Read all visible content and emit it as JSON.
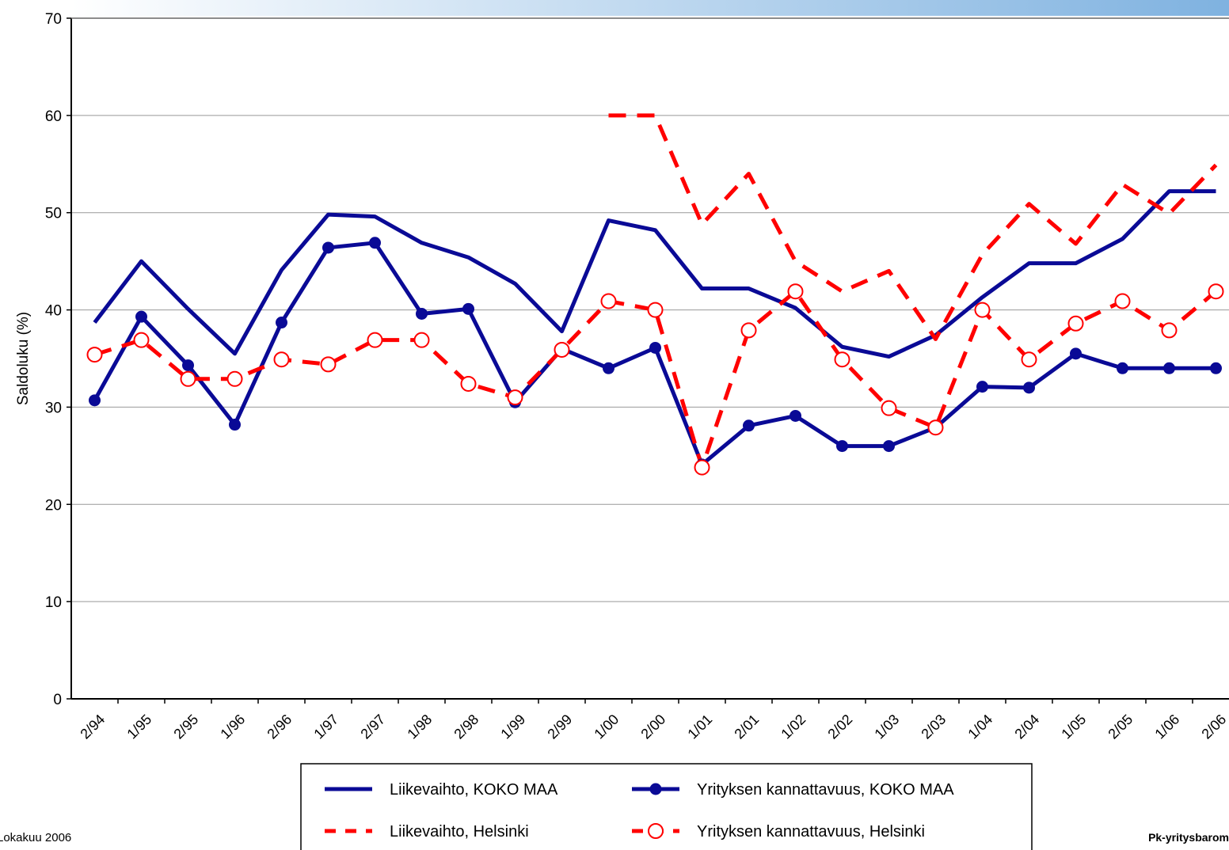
{
  "chart_data": {
    "type": "line",
    "y_label": "Saldoluku (%)",
    "footer_left": "Lokakuu 2006",
    "footer_right": "Pk-yritysbarom",
    "categories": [
      "2/94",
      "1/95",
      "2/95",
      "1/96",
      "2/96",
      "1/97",
      "2/97",
      "1/98",
      "2/98",
      "1/99",
      "2/99",
      "1/00",
      "2/00",
      "1/01",
      "2/01",
      "1/02",
      "2/02",
      "1/03",
      "2/03",
      "1/04",
      "2/04",
      "1/05",
      "2/05",
      "1/06",
      "2/06"
    ],
    "ylim": [
      0,
      70
    ],
    "yticks": [
      0,
      10,
      20,
      30,
      40,
      50,
      60,
      70
    ],
    "grid": true,
    "series": [
      {
        "name": "Liikevaihto, KOKO MAA",
        "color": "#0a0a96",
        "style": "solid",
        "values": [
          38.7,
          45.0,
          40.1,
          35.5,
          44.1,
          49.8,
          49.6,
          46.9,
          45.4,
          42.7,
          37.8,
          49.2,
          48.2,
          42.2,
          42.2,
          40.2,
          36.2,
          35.2,
          37.4,
          41.3,
          44.8,
          44.8,
          47.3,
          52.2,
          52.2
        ]
      },
      {
        "name": "Yrityksen kannattavuus, KOKO MAA",
        "color": "#0a0a96",
        "style": "solid-dot",
        "values": [
          30.7,
          39.3,
          34.3,
          28.2,
          38.7,
          46.4,
          46.9,
          39.6,
          40.1,
          30.5,
          36.0,
          34.0,
          36.1,
          24.1,
          28.1,
          29.1,
          26.0,
          26.0,
          27.9,
          32.1,
          32.0,
          35.5,
          34.0,
          34.0,
          34.0
        ]
      },
      {
        "name": "Liikevaihto, Helsinki",
        "color": "#ff0000",
        "style": "dashed",
        "values": [
          null,
          null,
          null,
          null,
          null,
          null,
          null,
          null,
          null,
          null,
          null,
          60.0,
          60.0,
          48.8,
          54.0,
          45.0,
          41.9,
          44.0,
          37.0,
          45.7,
          50.9,
          46.8,
          52.9,
          49.9,
          54.9
        ]
      },
      {
        "name": "Yrityksen kannattavuus, Helsinki",
        "color": "#ff0000",
        "style": "dashed-circle",
        "values": [
          35.4,
          36.9,
          32.9,
          32.9,
          34.9,
          34.4,
          36.9,
          36.9,
          32.4,
          31.0,
          35.9,
          40.9,
          40.0,
          23.8,
          37.9,
          41.9,
          34.9,
          29.9,
          27.9,
          40.0,
          34.9,
          38.6,
          40.9,
          37.9,
          41.9
        ]
      }
    ]
  }
}
